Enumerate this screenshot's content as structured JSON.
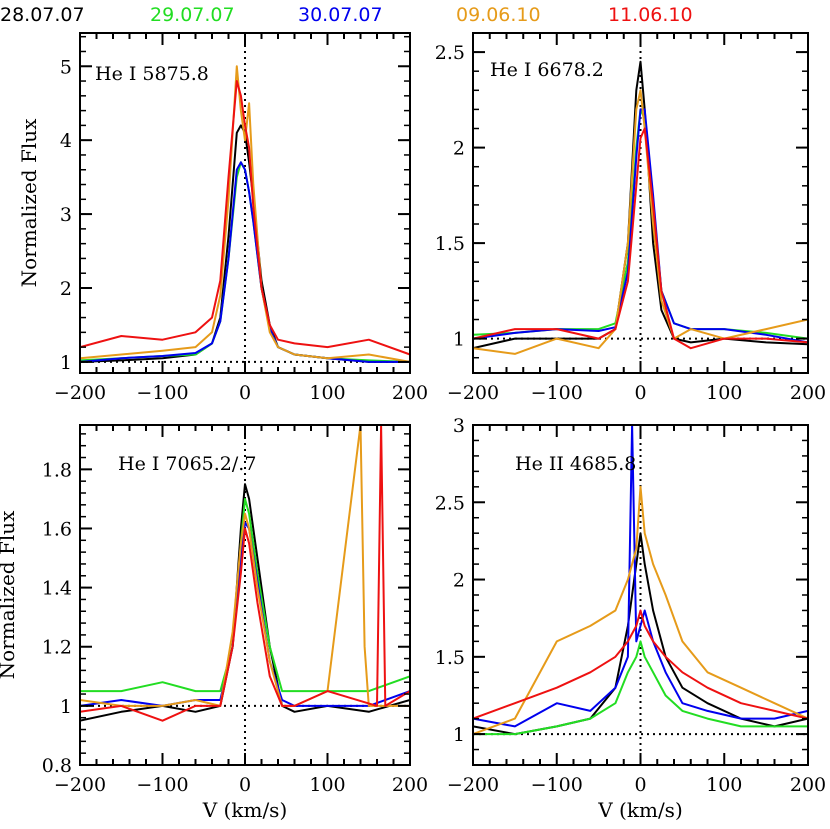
{
  "legend": [
    {
      "label": "28.07.07",
      "color": "#000000"
    },
    {
      "label": "29.07.07",
      "color": "#22dd22"
    },
    {
      "label": "30.07.07",
      "color": "#0000ee"
    },
    {
      "label": "09.06.10",
      "color": "#e69b1a"
    },
    {
      "label": "11.06.10",
      "color": "#ee1111"
    }
  ],
  "chart_data": [
    {
      "type": "line",
      "title": "He I 5875.8",
      "xlabel": "",
      "ylabel": "Normalized Flux",
      "xlim": [
        -200,
        200
      ],
      "ylim": [
        0.85,
        5.45
      ],
      "xticks": [
        -200,
        -100,
        0,
        100,
        200
      ],
      "yticks": [
        1,
        2,
        3,
        4,
        5
      ],
      "zero_lines": {
        "x": 0,
        "y": 1
      },
      "series": [
        {
          "name": "28.07.07",
          "color": "#000000",
          "x": [
            -200,
            -150,
            -100,
            -60,
            -40,
            -30,
            -20,
            -10,
            -5,
            0,
            5,
            10,
            20,
            30,
            40,
            60,
            100,
            150,
            200
          ],
          "y": [
            1.0,
            1.02,
            1.05,
            1.1,
            1.25,
            1.6,
            2.7,
            4.1,
            4.2,
            4.1,
            3.7,
            3.2,
            2.1,
            1.5,
            1.2,
            1.1,
            1.05,
            1.0,
            1.0
          ]
        },
        {
          "name": "29.07.07",
          "color": "#22dd22",
          "x": [
            -200,
            -150,
            -100,
            -60,
            -40,
            -30,
            -20,
            -10,
            -5,
            0,
            5,
            10,
            20,
            30,
            40,
            60,
            100,
            150,
            200
          ],
          "y": [
            1.02,
            1.05,
            1.08,
            1.1,
            1.25,
            1.55,
            2.4,
            3.5,
            3.7,
            3.6,
            3.3,
            2.9,
            2.0,
            1.45,
            1.2,
            1.1,
            1.05,
            1.02,
            1.0
          ]
        },
        {
          "name": "30.07.07",
          "color": "#0000ee",
          "x": [
            -200,
            -150,
            -100,
            -60,
            -40,
            -30,
            -20,
            -10,
            -5,
            0,
            5,
            10,
            20,
            30,
            40,
            60,
            100,
            150,
            200
          ],
          "y": [
            1.0,
            1.05,
            1.08,
            1.12,
            1.25,
            1.55,
            2.4,
            3.6,
            3.7,
            3.6,
            3.3,
            2.9,
            2.0,
            1.45,
            1.2,
            1.1,
            1.05,
            1.0,
            1.0
          ]
        },
        {
          "name": "09.06.10",
          "color": "#e69b1a",
          "x": [
            -200,
            -150,
            -100,
            -60,
            -40,
            -30,
            -20,
            -10,
            -5,
            0,
            5,
            10,
            20,
            30,
            40,
            60,
            100,
            150,
            200
          ],
          "y": [
            1.05,
            1.1,
            1.15,
            1.2,
            1.4,
            1.9,
            3.2,
            5.0,
            4.4,
            4.0,
            4.5,
            3.4,
            2.0,
            1.4,
            1.2,
            1.1,
            1.05,
            1.1,
            1.0
          ]
        },
        {
          "name": "11.06.10",
          "color": "#ee1111",
          "x": [
            -200,
            -150,
            -100,
            -60,
            -40,
            -30,
            -20,
            -10,
            -5,
            0,
            5,
            10,
            20,
            30,
            40,
            60,
            100,
            150,
            200
          ],
          "y": [
            1.2,
            1.35,
            1.3,
            1.4,
            1.6,
            2.1,
            3.5,
            4.8,
            4.6,
            4.2,
            3.9,
            3.1,
            2.0,
            1.5,
            1.3,
            1.25,
            1.2,
            1.3,
            1.1
          ]
        }
      ]
    },
    {
      "type": "line",
      "title": "He I 6678.2",
      "xlabel": "",
      "ylabel": "",
      "xlim": [
        -200,
        200
      ],
      "ylim": [
        0.82,
        2.6
      ],
      "xticks": [
        -200,
        -100,
        0,
        100,
        200
      ],
      "yticks": [
        1,
        1.5,
        2,
        2.5
      ],
      "zero_lines": {
        "x": 0,
        "y": 1
      },
      "series": [
        {
          "name": "28.07.07",
          "color": "#000000",
          "x": [
            -200,
            -150,
            -100,
            -50,
            -30,
            -15,
            -5,
            0,
            5,
            15,
            25,
            40,
            60,
            100,
            150,
            200
          ],
          "y": [
            0.95,
            1.0,
            1.0,
            1.0,
            1.05,
            1.5,
            2.3,
            2.45,
            2.2,
            1.5,
            1.15,
            1.0,
            0.98,
            1.0,
            0.98,
            0.97
          ]
        },
        {
          "name": "29.07.07",
          "color": "#22dd22",
          "x": [
            -200,
            -150,
            -100,
            -50,
            -30,
            -15,
            -5,
            0,
            5,
            15,
            25,
            40,
            60,
            100,
            150,
            200
          ],
          "y": [
            1.02,
            1.03,
            1.05,
            1.05,
            1.08,
            1.4,
            2.0,
            2.2,
            2.15,
            1.7,
            1.25,
            1.08,
            1.05,
            1.05,
            1.03,
            1.0
          ]
        },
        {
          "name": "30.07.07",
          "color": "#0000ee",
          "x": [
            -200,
            -150,
            -100,
            -50,
            -30,
            -15,
            -5,
            0,
            5,
            15,
            25,
            40,
            60,
            100,
            150,
            200
          ],
          "y": [
            1.0,
            1.03,
            1.05,
            1.04,
            1.06,
            1.35,
            1.95,
            2.2,
            2.2,
            1.75,
            1.25,
            1.08,
            1.05,
            1.05,
            1.02,
            0.98
          ]
        },
        {
          "name": "09.06.10",
          "color": "#e69b1a",
          "x": [
            -200,
            -150,
            -100,
            -50,
            -30,
            -15,
            -5,
            0,
            5,
            15,
            25,
            40,
            60,
            100,
            150,
            200
          ],
          "y": [
            0.95,
            0.92,
            1.0,
            0.95,
            1.05,
            1.5,
            2.2,
            2.3,
            2.1,
            1.6,
            1.2,
            1.0,
            1.05,
            1.0,
            1.05,
            1.1
          ]
        },
        {
          "name": "11.06.10",
          "color": "#ee1111",
          "x": [
            -200,
            -150,
            -100,
            -50,
            -30,
            -15,
            -5,
            0,
            5,
            15,
            25,
            40,
            60,
            100,
            150,
            200
          ],
          "y": [
            1.0,
            1.05,
            1.05,
            1.0,
            1.05,
            1.3,
            1.8,
            2.05,
            2.1,
            1.7,
            1.25,
            1.0,
            0.95,
            1.0,
            1.0,
            0.98
          ]
        }
      ]
    },
    {
      "type": "line",
      "title": "He I 7065.2/.7",
      "xlabel": "V (km/s)",
      "ylabel": "Normalized Flux",
      "xlim": [
        -200,
        200
      ],
      "ylim": [
        0.8,
        1.95
      ],
      "xticks": [
        -200,
        -100,
        0,
        100,
        200
      ],
      "yticks": [
        0.8,
        1,
        1.2,
        1.4,
        1.6,
        1.8
      ],
      "zero_lines": {
        "x": 0,
        "y": 1
      },
      "series": [
        {
          "name": "28.07.07",
          "color": "#000000",
          "x": [
            -200,
            -150,
            -100,
            -60,
            -30,
            -15,
            -5,
            0,
            5,
            15,
            30,
            45,
            60,
            100,
            150,
            200
          ],
          "y": [
            0.95,
            0.98,
            1.0,
            0.98,
            1.0,
            1.2,
            1.6,
            1.75,
            1.7,
            1.5,
            1.2,
            1.0,
            0.98,
            1.0,
            0.98,
            1.02
          ]
        },
        {
          "name": "29.07.07",
          "color": "#22dd22",
          "x": [
            -200,
            -150,
            -100,
            -60,
            -30,
            -15,
            -5,
            0,
            5,
            15,
            30,
            45,
            60,
            100,
            150,
            200
          ],
          "y": [
            1.05,
            1.05,
            1.08,
            1.05,
            1.05,
            1.2,
            1.55,
            1.7,
            1.65,
            1.45,
            1.2,
            1.05,
            1.05,
            1.05,
            1.05,
            1.1
          ]
        },
        {
          "name": "30.07.07",
          "color": "#0000ee",
          "x": [
            -200,
            -150,
            -100,
            -60,
            -30,
            -15,
            -5,
            0,
            5,
            15,
            30,
            45,
            60,
            100,
            150,
            200
          ],
          "y": [
            1.0,
            1.02,
            1.0,
            1.02,
            1.02,
            1.2,
            1.5,
            1.62,
            1.6,
            1.42,
            1.15,
            1.02,
            1.0,
            1.0,
            1.0,
            1.05
          ]
        },
        {
          "name": "09.06.10",
          "color": "#e69b1a",
          "x": [
            -200,
            -150,
            -100,
            -60,
            -30,
            -15,
            -5,
            0,
            5,
            15,
            30,
            45,
            60,
            100,
            140,
            145,
            150,
            200
          ],
          "y": [
            1.02,
            1.0,
            1.0,
            1.02,
            1.0,
            1.25,
            1.55,
            1.65,
            1.6,
            1.4,
            1.15,
            1.0,
            1.0,
            1.05,
            1.95,
            1.2,
            1.0,
            1.0
          ]
        },
        {
          "name": "11.06.10",
          "color": "#ee1111",
          "x": [
            -200,
            -150,
            -100,
            -60,
            -30,
            -15,
            -5,
            0,
            5,
            15,
            30,
            45,
            60,
            100,
            160,
            165,
            170,
            200
          ],
          "y": [
            0.98,
            1.0,
            0.95,
            1.0,
            1.0,
            1.2,
            1.45,
            1.6,
            1.55,
            1.35,
            1.1,
            1.0,
            1.0,
            1.05,
            1.0,
            1.95,
            1.0,
            1.05
          ]
        }
      ]
    },
    {
      "type": "line",
      "title": "He II 4685.8",
      "xlabel": "V (km/s)",
      "ylabel": "",
      "xlim": [
        -200,
        200
      ],
      "ylim": [
        0.8,
        3.0
      ],
      "xticks": [
        -200,
        -100,
        0,
        100,
        200
      ],
      "yticks": [
        1,
        1.5,
        2,
        2.5,
        3
      ],
      "zero_lines": {
        "x": 0,
        "y": 1
      },
      "series": [
        {
          "name": "28.07.07",
          "color": "#000000",
          "x": [
            -200,
            -150,
            -100,
            -60,
            -30,
            -15,
            -5,
            0,
            5,
            15,
            30,
            50,
            80,
            120,
            160,
            200
          ],
          "y": [
            1.05,
            1.0,
            1.05,
            1.1,
            1.3,
            1.7,
            2.1,
            2.3,
            2.1,
            1.8,
            1.5,
            1.3,
            1.2,
            1.1,
            1.05,
            1.1
          ]
        },
        {
          "name": "29.07.07",
          "color": "#22dd22",
          "x": [
            -200,
            -150,
            -100,
            -60,
            -30,
            -15,
            -5,
            0,
            5,
            15,
            30,
            50,
            80,
            120,
            160,
            200
          ],
          "y": [
            1.0,
            1.0,
            1.05,
            1.1,
            1.2,
            1.4,
            1.5,
            1.6,
            1.5,
            1.4,
            1.25,
            1.15,
            1.1,
            1.05,
            1.05,
            1.05
          ]
        },
        {
          "name": "30.07.07",
          "color": "#0000ee",
          "x": [
            -200,
            -150,
            -100,
            -60,
            -30,
            -15,
            -10,
            -5,
            0,
            5,
            15,
            30,
            50,
            80,
            120,
            160,
            200
          ],
          "y": [
            1.1,
            1.05,
            1.2,
            1.15,
            1.3,
            1.5,
            3.0,
            1.6,
            1.7,
            1.8,
            1.6,
            1.4,
            1.2,
            1.15,
            1.1,
            1.1,
            1.15
          ]
        },
        {
          "name": "09.06.10",
          "color": "#e69b1a",
          "x": [
            -200,
            -150,
            -100,
            -60,
            -30,
            -15,
            -5,
            0,
            5,
            15,
            30,
            50,
            80,
            120,
            160,
            200
          ],
          "y": [
            1.0,
            1.1,
            1.6,
            1.7,
            1.8,
            2.0,
            2.2,
            2.6,
            2.3,
            2.1,
            1.9,
            1.6,
            1.4,
            1.3,
            1.2,
            1.1
          ]
        },
        {
          "name": "11.06.10",
          "color": "#ee1111",
          "x": [
            -200,
            -150,
            -100,
            -60,
            -30,
            -15,
            -5,
            0,
            5,
            15,
            30,
            50,
            80,
            120,
            160,
            200
          ],
          "y": [
            1.1,
            1.2,
            1.3,
            1.4,
            1.5,
            1.6,
            1.7,
            1.8,
            1.7,
            1.6,
            1.5,
            1.4,
            1.3,
            1.2,
            1.15,
            1.1
          ]
        }
      ]
    }
  ]
}
